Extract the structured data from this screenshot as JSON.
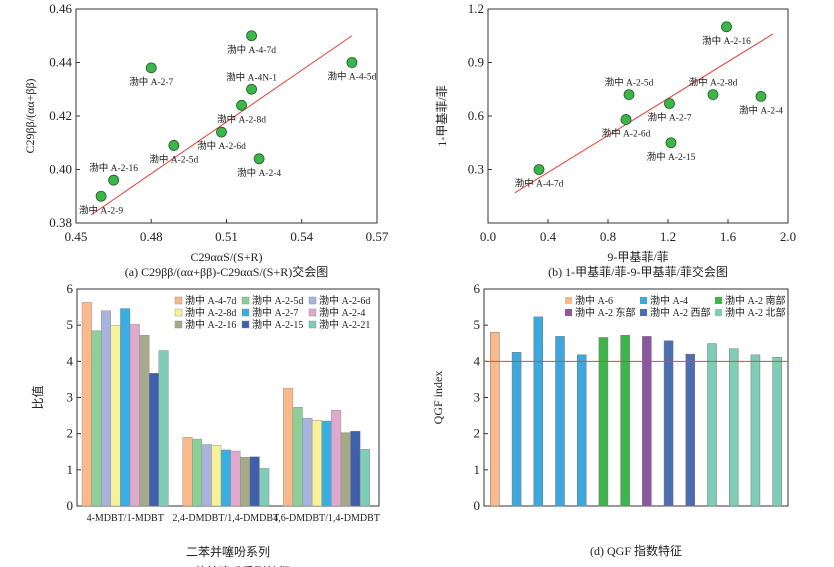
{
  "chart_data": [
    {
      "type": "scatter",
      "id": "a",
      "ylabel": "C29ββ/(αα+ββ)",
      "xlabel": "C29ααS/(S+R)",
      "caption": "(a) C29ββ/(αα+ββ)-C29ααS/(S+R)交会图",
      "xlim": [
        0.45,
        0.57
      ],
      "ylim": [
        0.38,
        0.46
      ],
      "xticks": [
        "0.45",
        "0.48",
        "0.51",
        "0.54",
        "0.57"
      ],
      "yticks": [
        "0.38",
        "0.40",
        "0.42",
        "0.44",
        "0.46"
      ],
      "points": [
        {
          "label": "渤中 A-4-7d",
          "x": 0.52,
          "y": 0.45,
          "pos": "below"
        },
        {
          "label": "渤中 A-2-7",
          "x": 0.48,
          "y": 0.438,
          "pos": "below"
        },
        {
          "label": "渤中 A-4-5d",
          "x": 0.56,
          "y": 0.44,
          "pos": "below"
        },
        {
          "label": "渤中 A-4N-1",
          "x": 0.52,
          "y": 0.43,
          "pos": "above"
        },
        {
          "label": "渤中 A-2-8d",
          "x": 0.516,
          "y": 0.424,
          "pos": "below"
        },
        {
          "label": "渤中 A-2-6d",
          "x": 0.508,
          "y": 0.414,
          "pos": "below"
        },
        {
          "label": "渤中 A-2-5d",
          "x": 0.489,
          "y": 0.409,
          "pos": "below"
        },
        {
          "label": "渤中 A-2-4",
          "x": 0.523,
          "y": 0.404,
          "pos": "below"
        },
        {
          "label": "渤中 A-2-16",
          "x": 0.465,
          "y": 0.396,
          "pos": "above"
        },
        {
          "label": "渤中 A-2-9",
          "x": 0.46,
          "y": 0.39,
          "pos": "below"
        }
      ],
      "trend": [
        [
          0.456,
          0.383
        ],
        [
          0.56,
          0.45
        ]
      ],
      "point_color": "#3cb54a",
      "trend_color": "#e8413c"
    },
    {
      "type": "scatter",
      "id": "b",
      "ylabel": "1-甲基菲/菲",
      "xlabel": "9-甲基菲/菲",
      "caption": "(b) 1-甲基菲/菲-9-甲基菲/菲交会图",
      "xlim": [
        0,
        2.0
      ],
      "ylim": [
        0,
        1.2
      ],
      "xticks": [
        "0.0",
        "0.4",
        "0.8",
        "1.2",
        "1.6",
        "2.0"
      ],
      "yticks": [
        "",
        "0.3",
        "0.6",
        "0.9",
        "1.2"
      ],
      "points": [
        {
          "label": "渤中 A-2-16",
          "x": 1.59,
          "y": 1.1,
          "pos": "below"
        },
        {
          "label": "渤中 A-2-5d",
          "x": 0.94,
          "y": 0.72,
          "pos": "above"
        },
        {
          "label": "渤中 A-2-8d",
          "x": 1.5,
          "y": 0.72,
          "pos": "above"
        },
        {
          "label": "渤中 A-2-4",
          "x": 1.82,
          "y": 0.71,
          "pos": "below"
        },
        {
          "label": "渤中 A-2-7",
          "x": 1.21,
          "y": 0.67,
          "pos": "below"
        },
        {
          "label": "渤中 A-2-6d",
          "x": 0.92,
          "y": 0.58,
          "pos": "below"
        },
        {
          "label": "渤中 A-2-15",
          "x": 1.22,
          "y": 0.45,
          "pos": "below"
        },
        {
          "label": "渤中 A-4-7d",
          "x": 0.34,
          "y": 0.3,
          "pos": "below"
        }
      ],
      "trend": [
        [
          0.18,
          0.17
        ],
        [
          1.9,
          1.06
        ]
      ],
      "point_color": "#3cb54a",
      "trend_color": "#e8413c"
    },
    {
      "type": "bar",
      "id": "c",
      "ylabel": "比值",
      "xlabel": "二苯并噻吩系列",
      "caption": "(c) 二苯并噻吩系列特征",
      "ylim": [
        0,
        6
      ],
      "yticks": [
        "0",
        "1",
        "2",
        "3",
        "4",
        "5",
        "6"
      ],
      "categories": [
        "4-MDBT/1-MDBT",
        "2,4-DMDBT/1,4-DMDBT",
        "4,6-DMDBT/1,4-DMDBT"
      ],
      "series": [
        {
          "name": "渤中 A-4-7d",
          "color": "#f9b98a",
          "values": [
            5.63,
            1.9,
            3.26
          ]
        },
        {
          "name": "渤中 A-2-5d",
          "color": "#8ccf98",
          "values": [
            4.85,
            1.85,
            2.73
          ]
        },
        {
          "name": "渤中 A-2-6d",
          "color": "#a9b4de",
          "values": [
            5.4,
            1.7,
            2.43
          ]
        },
        {
          "name": "渤中 A-2-8d",
          "color": "#f7f29a",
          "values": [
            5.0,
            1.68,
            2.37
          ]
        },
        {
          "name": "渤中 A-2-7",
          "color": "#3aaee3",
          "values": [
            5.46,
            1.55,
            2.35
          ]
        },
        {
          "name": "渤中 A-2-4",
          "color": "#dea9cc",
          "values": [
            5.02,
            1.52,
            2.65
          ]
        },
        {
          "name": "渤中 A-2-16",
          "color": "#a6a98a",
          "values": [
            4.72,
            1.35,
            2.03
          ]
        },
        {
          "name": "渤中 A-2-15",
          "color": "#3f5fab",
          "values": [
            3.67,
            1.36,
            2.07
          ]
        },
        {
          "name": "渤中 A-2-21",
          "color": "#7fcdb7",
          "values": [
            4.3,
            1.04,
            1.57
          ]
        }
      ]
    },
    {
      "type": "bar",
      "id": "d",
      "ylabel": "QGF index",
      "xlabel": "",
      "caption": "(d) QGF 指数特征",
      "ylim": [
        0,
        6
      ],
      "yticks": [
        "0",
        "1",
        "2",
        "3",
        "4",
        "5",
        "6"
      ],
      "reference_line": 4,
      "reference_color": "#e8413c",
      "legend": [
        {
          "name": "渤中 A-6",
          "color": "#f9b98a"
        },
        {
          "name": "渤中 A-4",
          "color": "#3ea8de"
        },
        {
          "name": "渤中 A-2 南部",
          "color": "#3cb54a"
        },
        {
          "name": "渤中 A-2 东部",
          "color": "#8d56a0"
        },
        {
          "name": "渤中 A-2 西部",
          "color": "#4c6db0"
        },
        {
          "name": "渤中 A-2 北部",
          "color": "#7fcdb7"
        }
      ],
      "bars": [
        {
          "group": 0,
          "value": 4.8
        },
        {
          "group": 1,
          "value": 4.25
        },
        {
          "group": 1,
          "value": 5.23
        },
        {
          "group": 1,
          "value": 4.69
        },
        {
          "group": 1,
          "value": 4.18
        },
        {
          "group": 2,
          "value": 4.66
        },
        {
          "group": 2,
          "value": 4.72
        },
        {
          "group": 3,
          "value": 4.69
        },
        {
          "group": 4,
          "value": 4.57
        },
        {
          "group": 4,
          "value": 4.2
        },
        {
          "group": 5,
          "value": 4.49
        },
        {
          "group": 5,
          "value": 4.35
        },
        {
          "group": 5,
          "value": 4.18
        },
        {
          "group": 5,
          "value": 4.11
        }
      ]
    }
  ]
}
